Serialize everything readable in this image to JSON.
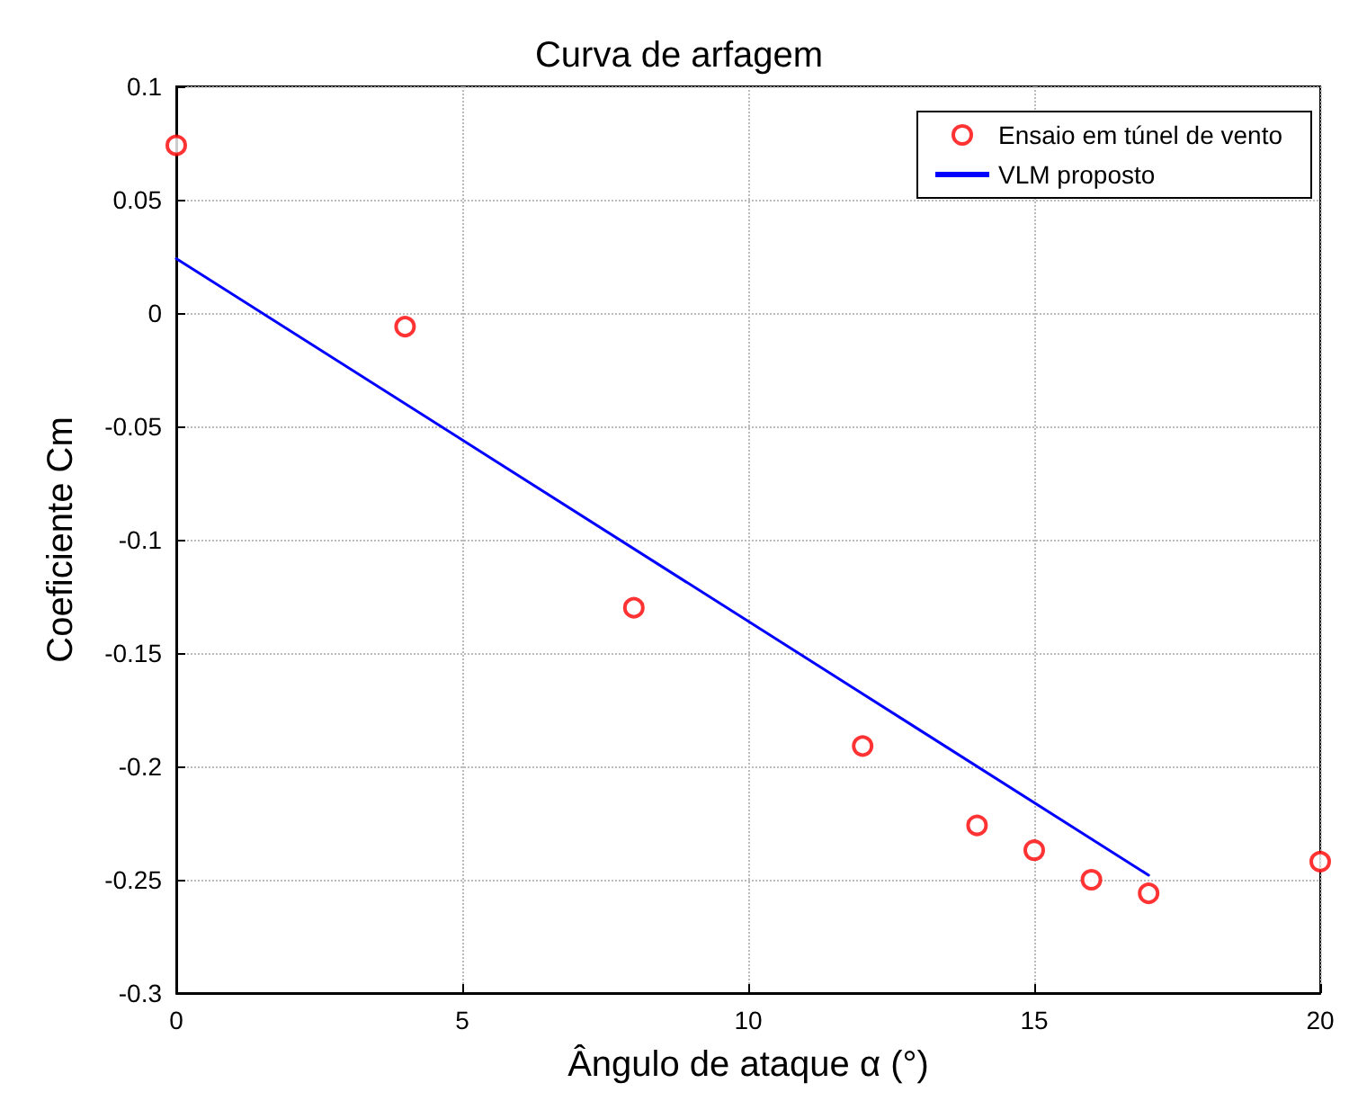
{
  "chart_data": {
    "type": "scatter",
    "title": "Curva de arfagem",
    "xlabel": "Ângulo de ataque α (°)",
    "ylabel": "Coeficiente Cm",
    "xlim": [
      0,
      20
    ],
    "xticks": [
      0,
      5,
      10,
      15,
      20
    ],
    "ylim": [
      -0.3,
      0.1
    ],
    "yticks": [
      -0.3,
      -0.25,
      -0.2,
      -0.15,
      -0.1,
      -0.05,
      0,
      0.05,
      0.1
    ],
    "grid": true,
    "legend": "top right",
    "series": [
      {
        "name": "Ensaio em túnel de vento",
        "marker": "circle",
        "color": "#ff0000",
        "x": [
          0,
          4,
          8,
          12,
          14,
          15,
          16,
          17,
          20
        ],
        "values": [
          0.074,
          -0.006,
          -0.13,
          -0.191,
          -0.226,
          -0.237,
          -0.25,
          -0.256,
          -0.242
        ]
      },
      {
        "name": "VLM proposto",
        "type": "line",
        "marker": "none",
        "line_style": "solid",
        "color": "#0000ff",
        "x": [
          0,
          17
        ],
        "values": [
          0.024,
          -0.248
        ]
      }
    ]
  }
}
